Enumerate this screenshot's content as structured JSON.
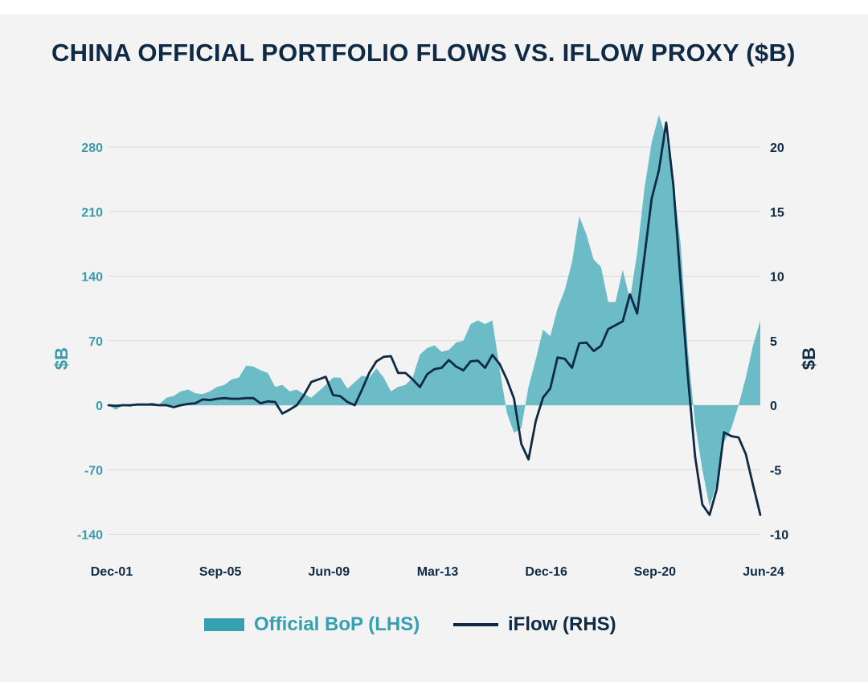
{
  "title": "CHINA OFFICIAL PORTFOLIO FLOWS VS. IFLOW PROXY ($B)",
  "colors": {
    "area": "#6cbcc8",
    "area_legend": "#36a0b0",
    "line": "#0e2a44",
    "left_axis": "#3a9bab",
    "background": "#f3f3f3",
    "grid": "#d9d9d9"
  },
  "legend": {
    "area_label": "Official BoP (LHS)",
    "line_label": "iFlow (RHS)"
  },
  "chart_data": {
    "type": "area",
    "title": "CHINA OFFICIAL PORTFOLIO FLOWS VS. IFLOW PROXY ($B)",
    "y_left": {
      "label": "$B",
      "range": [
        -140,
        280
      ],
      "ticks": [
        280,
        210,
        140,
        70,
        0,
        -70,
        -140
      ]
    },
    "y_right": {
      "label": "$B",
      "range": [
        -10,
        20
      ],
      "ticks": [
        20,
        15,
        10,
        5,
        0,
        -5,
        -10
      ]
    },
    "x_axis": {
      "range": [
        "Dec-01",
        "Jun-24"
      ],
      "tick_labels": [
        "Dec-01",
        "Sep-05",
        "Jun-09",
        "Mar-13",
        "Dec-16",
        "Sep-20",
        "Jun-24"
      ]
    },
    "grid": true,
    "legend_position": "bottom",
    "series": [
      {
        "name": "Official BoP (LHS)",
        "type": "area",
        "axis": "left",
        "points": [
          [
            "Dec-01",
            0
          ],
          [
            "Mar-02",
            -5
          ],
          [
            "Jun-02",
            0
          ],
          [
            "Sep-02",
            -2
          ],
          [
            "Dec-02",
            2
          ],
          [
            "Mar-03",
            1
          ],
          [
            "Jun-03",
            3
          ],
          [
            "Sep-03",
            1
          ],
          [
            "Dec-03",
            8
          ],
          [
            "Mar-04",
            10
          ],
          [
            "Jun-04",
            15
          ],
          [
            "Sep-04",
            17
          ],
          [
            "Dec-04",
            13
          ],
          [
            "Mar-05",
            12
          ],
          [
            "Jun-05",
            15
          ],
          [
            "Sep-05",
            20
          ],
          [
            "Dec-05",
            22
          ],
          [
            "Mar-06",
            28
          ],
          [
            "Jun-06",
            30
          ],
          [
            "Sep-06",
            43
          ],
          [
            "Dec-06",
            42
          ],
          [
            "Mar-07",
            38
          ],
          [
            "Jun-07",
            35
          ],
          [
            "Sep-07",
            20
          ],
          [
            "Dec-07",
            22
          ],
          [
            "Mar-08",
            15
          ],
          [
            "Jun-08",
            17
          ],
          [
            "Sep-08",
            12
          ],
          [
            "Dec-08",
            8
          ],
          [
            "Mar-09",
            15
          ],
          [
            "Jun-09",
            22
          ],
          [
            "Sep-09",
            30
          ],
          [
            "Dec-09",
            30
          ],
          [
            "Mar-10",
            18
          ],
          [
            "Jun-10",
            25
          ],
          [
            "Sep-10",
            32
          ],
          [
            "Dec-10",
            30
          ],
          [
            "Mar-11",
            40
          ],
          [
            "Jun-11",
            30
          ],
          [
            "Sep-11",
            15
          ],
          [
            "Dec-11",
            20
          ],
          [
            "Mar-12",
            22
          ],
          [
            "Jun-12",
            30
          ],
          [
            "Sep-12",
            55
          ],
          [
            "Dec-12",
            62
          ],
          [
            "Mar-13",
            65
          ],
          [
            "Jun-13",
            58
          ],
          [
            "Sep-13",
            60
          ],
          [
            "Dec-13",
            68
          ],
          [
            "Mar-14",
            70
          ],
          [
            "Jun-14",
            88
          ],
          [
            "Sep-14",
            92
          ],
          [
            "Dec-14",
            88
          ],
          [
            "Mar-15",
            92
          ],
          [
            "Jun-15",
            40
          ],
          [
            "Sep-15",
            -8
          ],
          [
            "Dec-15",
            -30
          ],
          [
            "Mar-16",
            -25
          ],
          [
            "Jun-16",
            20
          ],
          [
            "Sep-16",
            50
          ],
          [
            "Dec-16",
            82
          ],
          [
            "Mar-17",
            75
          ],
          [
            "Jun-17",
            105
          ],
          [
            "Sep-17",
            125
          ],
          [
            "Dec-17",
            155
          ],
          [
            "Mar-18",
            205
          ],
          [
            "Jun-18",
            185
          ],
          [
            "Sep-18",
            158
          ],
          [
            "Dec-18",
            150
          ],
          [
            "Mar-19",
            112
          ],
          [
            "Jun-19",
            112
          ],
          [
            "Sep-19",
            147
          ],
          [
            "Dec-19",
            115
          ],
          [
            "Mar-20",
            165
          ],
          [
            "Jun-20",
            235
          ],
          [
            "Sep-20",
            285
          ],
          [
            "Dec-20",
            315
          ],
          [
            "Mar-21",
            290
          ],
          [
            "Jun-21",
            240
          ],
          [
            "Sep-21",
            175
          ],
          [
            "Dec-21",
            60
          ],
          [
            "Mar-22",
            -20
          ],
          [
            "Jun-22",
            -70
          ],
          [
            "Sep-22",
            -110
          ],
          [
            "Dec-22",
            -85
          ],
          [
            "Mar-23",
            -40
          ],
          [
            "Jun-23",
            -25
          ],
          [
            "Sep-23",
            0
          ],
          [
            "Dec-23",
            30
          ],
          [
            "Mar-24",
            65
          ],
          [
            "Jun-24",
            92
          ]
        ]
      },
      {
        "name": "iFlow (RHS)",
        "type": "line",
        "axis": "right",
        "points": [
          [
            "Dec-01",
            0
          ],
          [
            "Mar-02",
            -0.05
          ],
          [
            "Jun-02",
            0
          ],
          [
            "Sep-02",
            0
          ],
          [
            "Dec-02",
            0.05
          ],
          [
            "Mar-03",
            0.05
          ],
          [
            "Jun-03",
            0.05
          ],
          [
            "Sep-03",
            0
          ],
          [
            "Dec-03",
            0
          ],
          [
            "Mar-04",
            -0.15
          ],
          [
            "Jun-04",
            0
          ],
          [
            "Sep-04",
            0.1
          ],
          [
            "Dec-04",
            0.15
          ],
          [
            "Mar-05",
            0.45
          ],
          [
            "Jun-05",
            0.4
          ],
          [
            "Sep-05",
            0.5
          ],
          [
            "Dec-05",
            0.55
          ],
          [
            "Mar-06",
            0.5
          ],
          [
            "Jun-06",
            0.5
          ],
          [
            "Sep-06",
            0.55
          ],
          [
            "Dec-06",
            0.55
          ],
          [
            "Mar-07",
            0.15
          ],
          [
            "Jun-07",
            0.3
          ],
          [
            "Sep-07",
            0.25
          ],
          [
            "Dec-07",
            -0.65
          ],
          [
            "Mar-08",
            -0.35
          ],
          [
            "Jun-08",
            0
          ],
          [
            "Sep-08",
            0.8
          ],
          [
            "Dec-08",
            1.8
          ],
          [
            "Mar-09",
            2
          ],
          [
            "Jun-09",
            2.2
          ],
          [
            "Sep-09",
            0.8
          ],
          [
            "Dec-09",
            0.7
          ],
          [
            "Mar-10",
            0.25
          ],
          [
            "Jun-10",
            0
          ],
          [
            "Sep-10",
            1.2
          ],
          [
            "Dec-10",
            2.5
          ],
          [
            "Mar-11",
            3.4
          ],
          [
            "Jun-11",
            3.75
          ],
          [
            "Sep-11",
            3.8
          ],
          [
            "Dec-11",
            2.5
          ],
          [
            "Mar-12",
            2.5
          ],
          [
            "Jun-12",
            2
          ],
          [
            "Sep-12",
            1.4
          ],
          [
            "Dec-12",
            2.4
          ],
          [
            "Mar-13",
            2.8
          ],
          [
            "Jun-13",
            2.9
          ],
          [
            "Sep-13",
            3.5
          ],
          [
            "Dec-13",
            3
          ],
          [
            "Mar-14",
            2.7
          ],
          [
            "Jun-14",
            3.4
          ],
          [
            "Sep-14",
            3.45
          ],
          [
            "Dec-14",
            2.9
          ],
          [
            "Mar-15",
            3.9
          ],
          [
            "Jun-15",
            3.2
          ],
          [
            "Sep-15",
            2
          ],
          [
            "Dec-15",
            0.5
          ],
          [
            "Mar-16",
            -3
          ],
          [
            "Jun-16",
            -4.2
          ],
          [
            "Sep-16",
            -1.2
          ],
          [
            "Dec-16",
            0.6
          ],
          [
            "Mar-17",
            1.3
          ],
          [
            "Jun-17",
            3.7
          ],
          [
            "Sep-17",
            3.6
          ],
          [
            "Dec-17",
            2.9
          ],
          [
            "Mar-18",
            4.8
          ],
          [
            "Jun-18",
            4.85
          ],
          [
            "Sep-18",
            4.2
          ],
          [
            "Dec-18",
            4.6
          ],
          [
            "Mar-19",
            5.9
          ],
          [
            "Jun-19",
            6.2
          ],
          [
            "Sep-19",
            6.5
          ],
          [
            "Dec-19",
            8.6
          ],
          [
            "Mar-20",
            7.1
          ],
          [
            "Jun-20",
            11.5
          ],
          [
            "Sep-20",
            16
          ],
          [
            "Dec-20",
            18.2
          ],
          [
            "Mar-21",
            21.9
          ],
          [
            "Jun-21",
            17
          ],
          [
            "Sep-21",
            9.5
          ],
          [
            "Dec-21",
            2.2
          ],
          [
            "Mar-22",
            -4
          ],
          [
            "Jun-22",
            -7.7
          ],
          [
            "Sep-22",
            -8.5
          ],
          [
            "Dec-22",
            -6.5
          ],
          [
            "Mar-23",
            -2.1
          ],
          [
            "Jun-23",
            -2.4
          ],
          [
            "Sep-23",
            -2.5
          ],
          [
            "Dec-23",
            -3.8
          ],
          [
            "Mar-24",
            -6.2
          ],
          [
            "Jun-24",
            -8.5
          ]
        ]
      }
    ]
  }
}
